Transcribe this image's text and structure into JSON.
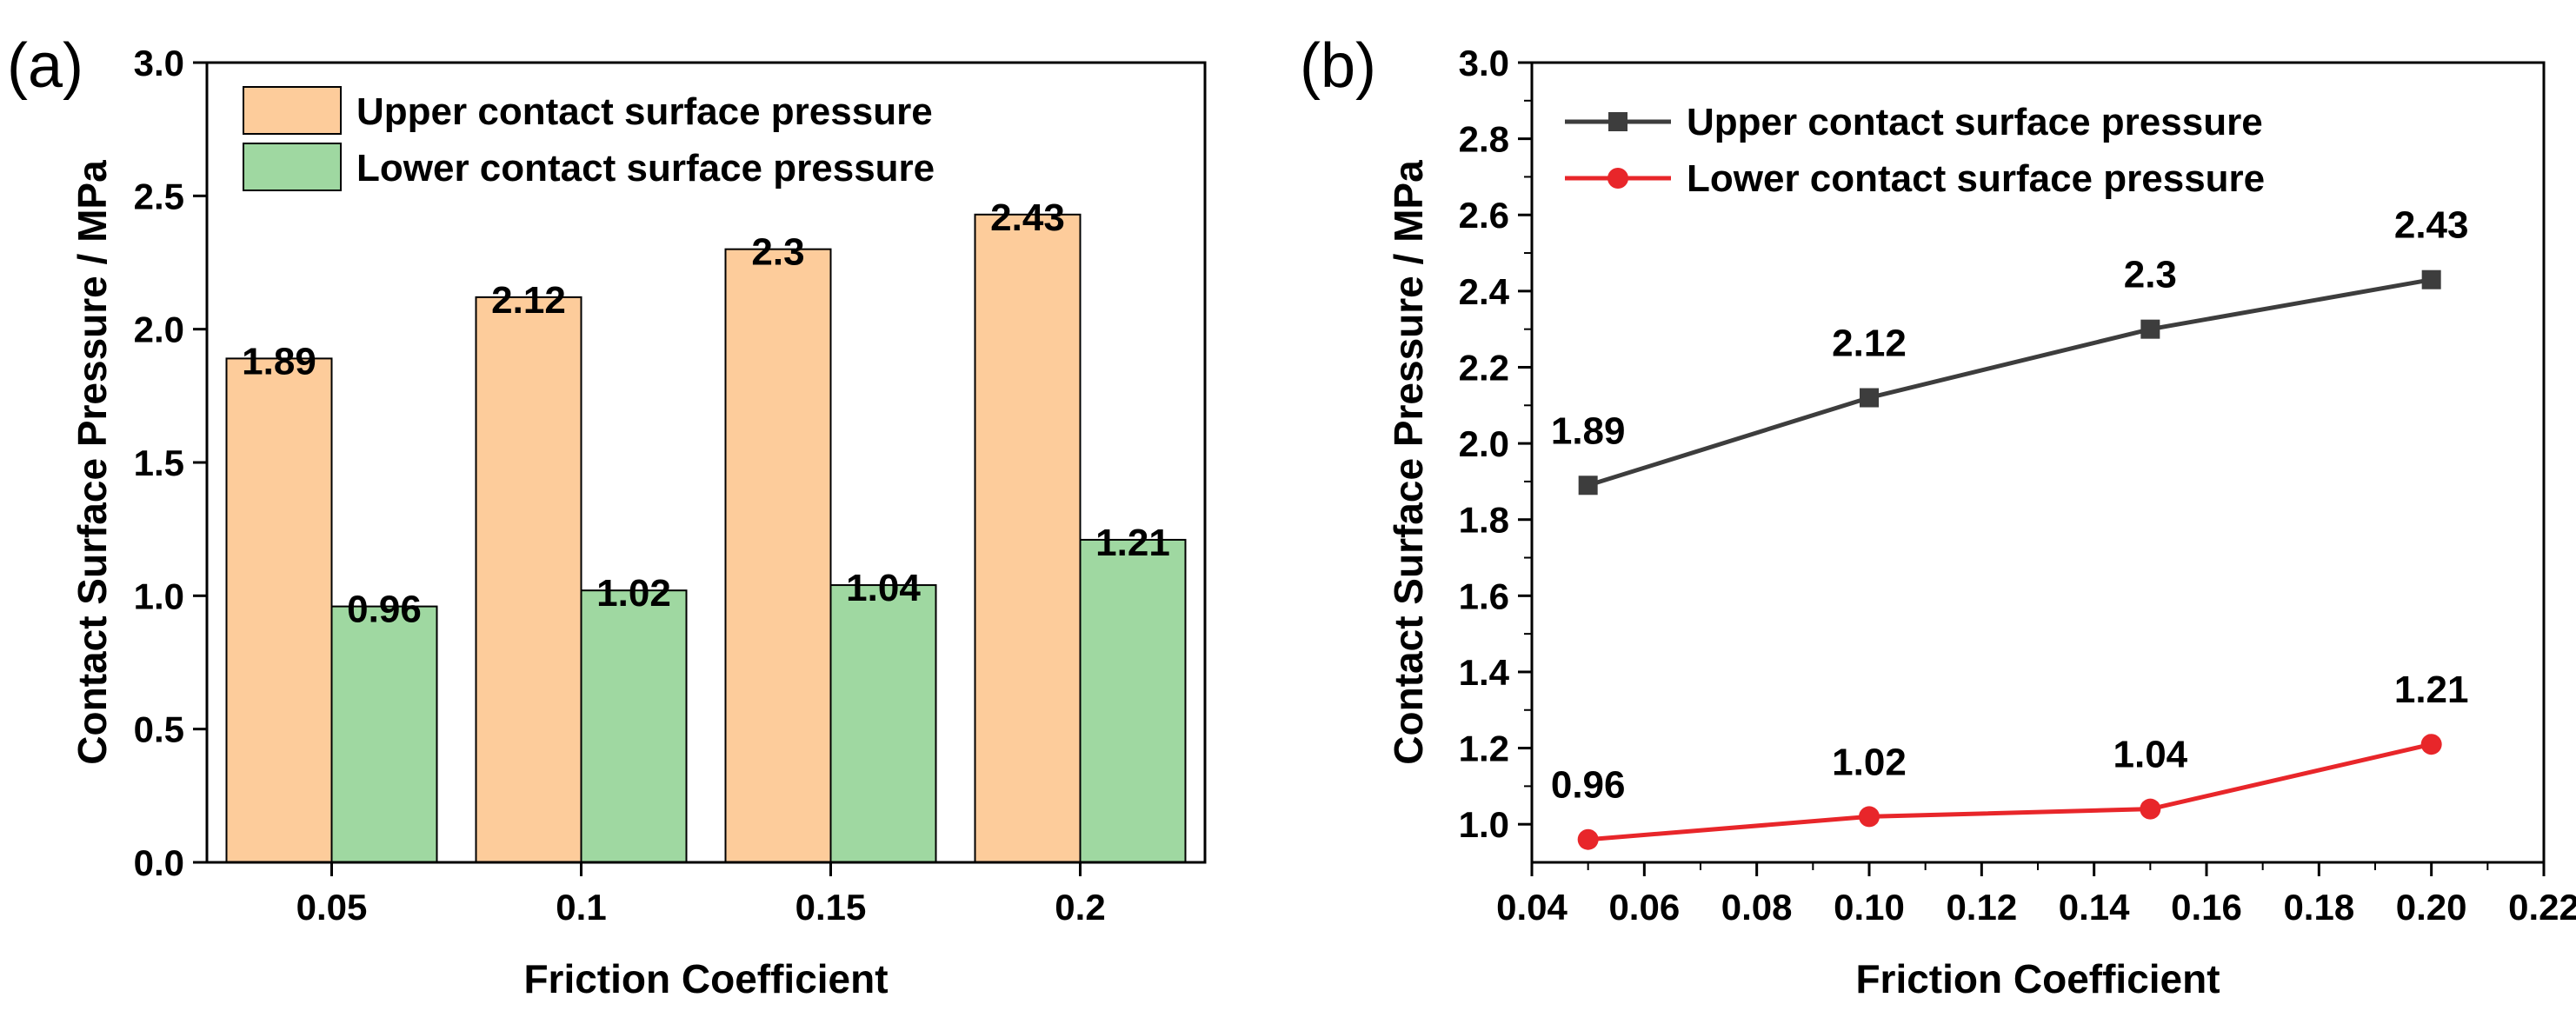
{
  "chart_data": [
    {
      "type": "bar",
      "panel_label": "(a)",
      "categories": [
        "0.05",
        "0.1",
        "0.15",
        "0.2"
      ],
      "series": [
        {
          "name": "Upper contact surface pressure",
          "values": [
            1.89,
            2.12,
            2.3,
            2.43
          ],
          "labels": [
            "1.89",
            "2.12",
            "2.3",
            "2.43"
          ],
          "color": "#fdcc9b"
        },
        {
          "name": "Lower contact surface pressure",
          "values": [
            0.96,
            1.02,
            1.04,
            1.21
          ],
          "labels": [
            "0.96",
            "1.02",
            "1.04",
            "1.21"
          ],
          "color": "#9fd8a1"
        }
      ],
      "xlabel": "Friction Coefficient",
      "ylabel": "Contact Surface Pressure / MPa",
      "ylim": [
        0,
        3.0
      ],
      "yticks": [
        "0.0",
        "0.5",
        "1.0",
        "1.5",
        "2.0",
        "2.5",
        "3.0"
      ],
      "legend": "top-left"
    },
    {
      "type": "line",
      "panel_label": "(b)",
      "x": [
        0.05,
        0.1,
        0.15,
        0.2
      ],
      "series": [
        {
          "name": "Upper contact surface pressure",
          "values": [
            1.89,
            2.12,
            2.3,
            2.43
          ],
          "labels": [
            "1.89",
            "2.12",
            "2.3",
            "2.43"
          ],
          "color": "#3d3d3d",
          "marker": "square"
        },
        {
          "name": "Lower contact surface pressure",
          "values": [
            0.96,
            1.02,
            1.04,
            1.21
          ],
          "labels": [
            "0.96",
            "1.02",
            "1.04",
            "1.21"
          ],
          "color": "#e8262a",
          "marker": "circle"
        }
      ],
      "xlabel": "Friction Coefficient",
      "ylabel": "Contact Surface Pressure / MPa",
      "xlim": [
        0.04,
        0.22
      ],
      "ylim": [
        0.9,
        3.0
      ],
      "xticks": [
        "0.04",
        "0.06",
        "0.08",
        "0.10",
        "0.12",
        "0.14",
        "0.16",
        "0.18",
        "0.20",
        "0.22"
      ],
      "yticks": [
        "1.0",
        "1.2",
        "1.4",
        "1.6",
        "1.8",
        "2.0",
        "2.2",
        "2.4",
        "2.6",
        "2.8",
        "3.0"
      ],
      "legend": "top-left"
    }
  ]
}
